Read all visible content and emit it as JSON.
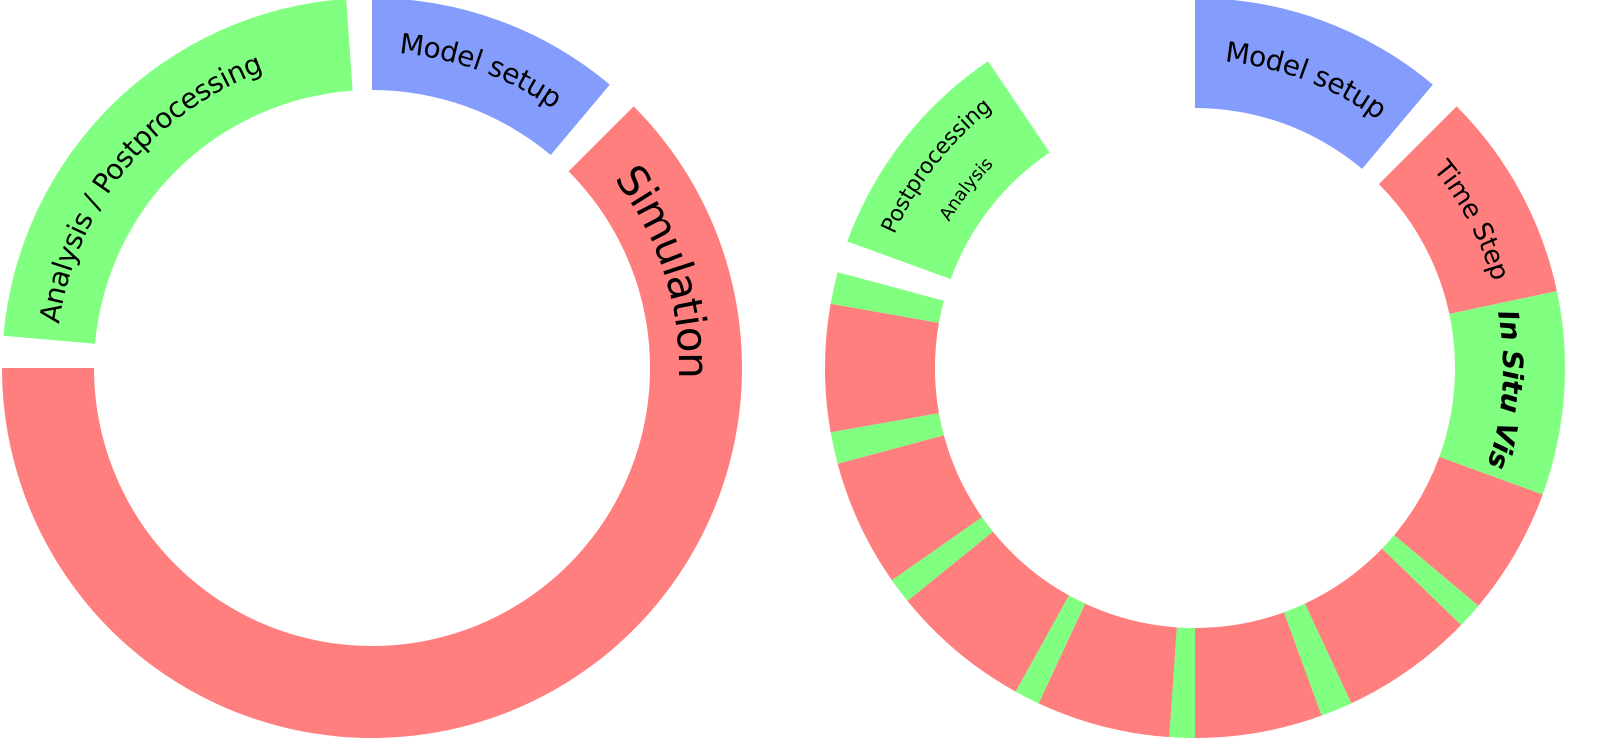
{
  "left_ring": {
    "segments": [
      {
        "label": "Model setup"
      },
      {
        "label": "Simulation"
      },
      {
        "label": "Analysis / Postprocessing"
      }
    ]
  },
  "right_ring": {
    "segments": [
      {
        "label": "Model setup"
      },
      {
        "label": "Time Step"
      },
      {
        "label": "In Situ Vis"
      },
      {
        "label": "Postprocessing",
        "sublabel": "Analysis"
      }
    ]
  }
}
